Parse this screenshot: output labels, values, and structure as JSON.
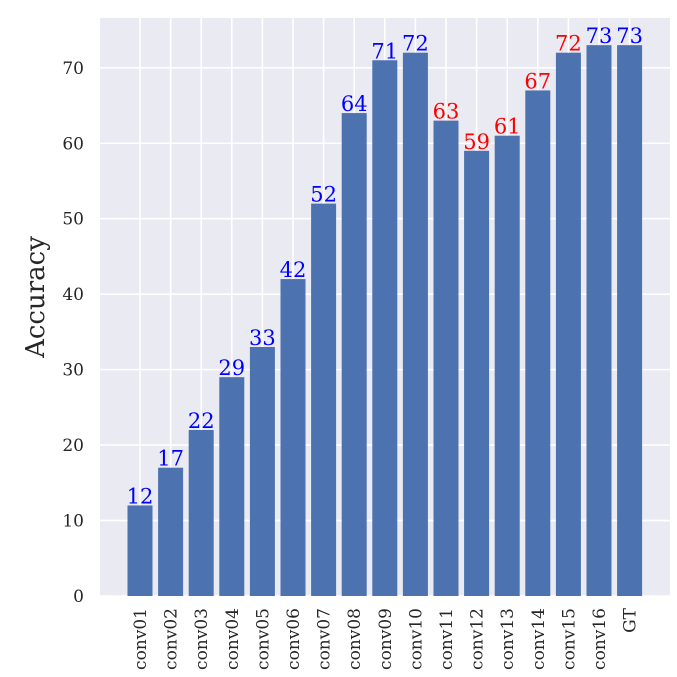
{
  "chart_data": {
    "type": "bar",
    "title": "",
    "xlabel": "",
    "ylabel": "Accuracy",
    "categories": [
      "conv01",
      "conv02",
      "conv03",
      "conv04",
      "conv05",
      "conv06",
      "conv07",
      "conv08",
      "conv09",
      "conv10",
      "conv11",
      "conv12",
      "conv13",
      "conv14",
      "conv15",
      "conv16",
      "GT"
    ],
    "values": [
      12,
      17,
      22,
      29,
      33,
      42,
      52,
      64,
      71,
      72,
      63,
      59,
      61,
      67,
      72,
      73,
      73
    ],
    "label_colors": [
      "#0000ff",
      "#0000ff",
      "#0000ff",
      "#0000ff",
      "#0000ff",
      "#0000ff",
      "#0000ff",
      "#0000ff",
      "#0000ff",
      "#0000ff",
      "#ff0000",
      "#ff0000",
      "#ff0000",
      "#ff0000",
      "#ff0000",
      "#0000ff",
      "#0000ff"
    ],
    "yticks": [
      0,
      10,
      20,
      30,
      40,
      50,
      60,
      70
    ],
    "ylim": [
      0,
      76.6
    ],
    "grid": true,
    "bar_color": "#4c72b0",
    "background_color": "#eaeaf2"
  }
}
